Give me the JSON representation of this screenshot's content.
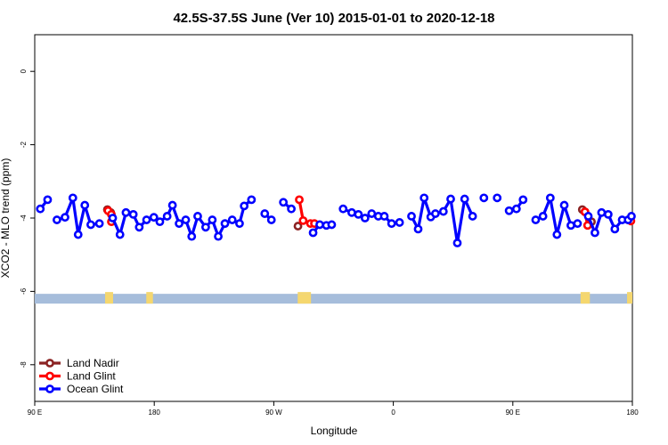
{
  "chart_data": {
    "type": "line",
    "title": "42.5S-37.5S June (Ver 10)   2015-01-01 to 2020-12-18",
    "xlabel": "Longitude",
    "ylabel": "XCO2 - MLO trend (ppm)",
    "xlim": [
      0,
      450
    ],
    "ylim": [
      -9,
      1
    ],
    "x_ticks": [
      {
        "value": 0,
        "label": "90 E"
      },
      {
        "value": 90,
        "label": "180"
      },
      {
        "value": 180,
        "label": "90 W"
      },
      {
        "value": 270,
        "label": "0"
      },
      {
        "value": 360,
        "label": "90 E"
      },
      {
        "value": 450,
        "label": "180"
      }
    ],
    "y_ticks": [
      0,
      -2,
      -4,
      -6,
      -8
    ],
    "grid": false,
    "legend_position": "bottom-left",
    "series": [
      {
        "name": "Land Nadir",
        "color": "#8b2323",
        "segments": [
          [
            [
              54.7,
              -3.77
            ],
            [
              57.2,
              -3.85
            ]
          ],
          [
            [
              198.2,
              -4.22
            ]
          ],
          [
            [
              412.3,
              -3.77
            ],
            [
              414.3,
              -3.83
            ]
          ],
          [
            [
              419.2,
              -4.1
            ]
          ]
        ]
      },
      {
        "name": "Land Glint",
        "color": "#ff0000",
        "segments": [
          [
            [
              55.2,
              -3.8
            ],
            [
              57.7,
              -3.9
            ],
            [
              57.7,
              -4.1
            ]
          ],
          [
            [
              199.2,
              -3.5
            ],
            [
              202.1,
              -4.07
            ],
            [
              207.6,
              -4.15
            ],
            [
              210.6,
              -4.15
            ]
          ],
          [
            [
              414.3,
              -3.83
            ],
            [
              416.3,
              -4.2
            ]
          ],
          [
            [
              447.0,
              -4.05
            ],
            [
              448.9,
              -4.08
            ]
          ]
        ]
      },
      {
        "name": "Ocean Glint",
        "color": "#0000ff",
        "segments": [
          [
            [
              4.2,
              -3.75
            ],
            [
              9.7,
              -3.5
            ]
          ],
          [
            [
              16.7,
              -4.05
            ],
            [
              22.8,
              -3.98
            ],
            [
              28.7,
              -3.45
            ],
            [
              32.7,
              -4.45
            ],
            [
              37.7,
              -3.65
            ],
            [
              42.2,
              -4.18
            ],
            [
              48.7,
              -4.15
            ]
          ],
          [
            [
              58.7,
              -4.0
            ],
            [
              64.2,
              -4.45
            ],
            [
              68.7,
              -3.85
            ],
            [
              74.2,
              -3.9
            ],
            [
              78.7,
              -4.25
            ],
            [
              84.2,
              -4.05
            ],
            [
              89.7,
              -3.98
            ],
            [
              94.2,
              -4.1
            ],
            [
              99.7,
              -3.95
            ],
            [
              103.7,
              -3.65
            ],
            [
              108.7,
              -4.15
            ],
            [
              113.7,
              -4.05
            ],
            [
              118.2,
              -4.5
            ],
            [
              122.7,
              -3.95
            ],
            [
              128.7,
              -4.25
            ],
            [
              133.7,
              -4.05
            ],
            [
              138.2,
              -4.5
            ],
            [
              143.2,
              -4.15
            ],
            [
              148.7,
              -4.05
            ],
            [
              154.2,
              -4.15
            ],
            [
              157.7,
              -3.67
            ],
            [
              163.2,
              -3.5
            ]
          ],
          [
            [
              173.2,
              -3.88
            ],
            [
              178.2,
              -4.05
            ]
          ],
          [
            [
              187.2,
              -3.57
            ],
            [
              193.2,
              -3.75
            ]
          ],
          [
            [
              209.6,
              -4.4
            ],
            [
              214.6,
              -4.18
            ],
            [
              219.6,
              -4.2
            ],
            [
              223.6,
              -4.18
            ]
          ],
          [
            [
              232.2,
              -3.75
            ],
            [
              238.7,
              -3.85
            ],
            [
              243.7,
              -3.9
            ],
            [
              248.7,
              -4.0
            ],
            [
              253.7,
              -3.88
            ],
            [
              258.7,
              -3.95
            ],
            [
              263.2,
              -3.95
            ],
            [
              268.7,
              -4.15
            ],
            [
              274.7,
              -4.12
            ]
          ],
          [
            [
              283.7,
              -3.95
            ],
            [
              288.7,
              -4.3
            ],
            [
              293.2,
              -3.45
            ],
            [
              298.2,
              -3.97
            ],
            [
              301.7,
              -3.88
            ],
            [
              307.7,
              -3.82
            ],
            [
              313.2,
              -3.48
            ],
            [
              318.2,
              -4.68
            ],
            [
              323.7,
              -3.48
            ],
            [
              329.7,
              -3.95
            ]
          ],
          [
            [
              338.2,
              -3.45
            ]
          ],
          [
            [
              348.2,
              -3.45
            ]
          ],
          [
            [
              357.2,
              -3.8
            ],
            [
              362.7,
              -3.75
            ],
            [
              367.7,
              -3.5
            ]
          ],
          [
            [
              377.2,
              -4.05
            ],
            [
              382.7,
              -3.95
            ],
            [
              388.2,
              -3.45
            ],
            [
              393.2,
              -4.45
            ],
            [
              398.7,
              -3.65
            ],
            [
              403.7,
              -4.2
            ],
            [
              408.7,
              -4.15
            ]
          ],
          [
            [
              416.8,
              -3.95
            ],
            [
              421.8,
              -4.4
            ],
            [
              426.8,
              -3.85
            ],
            [
              431.8,
              -3.9
            ],
            [
              436.8,
              -4.3
            ],
            [
              442.3,
              -4.05
            ],
            [
              446.8,
              -4.05
            ],
            [
              449.3,
              -3.95
            ]
          ]
        ]
      }
    ],
    "land_mask_bar": {
      "y_center": -6.2,
      "ocean_color": "#a6bddb",
      "land_color": "#f5d76e",
      "land_ranges": [
        [
          53,
          59
        ],
        [
          84,
          89
        ],
        [
          198,
          208
        ],
        [
          411,
          418
        ],
        [
          446,
          450
        ]
      ]
    }
  }
}
